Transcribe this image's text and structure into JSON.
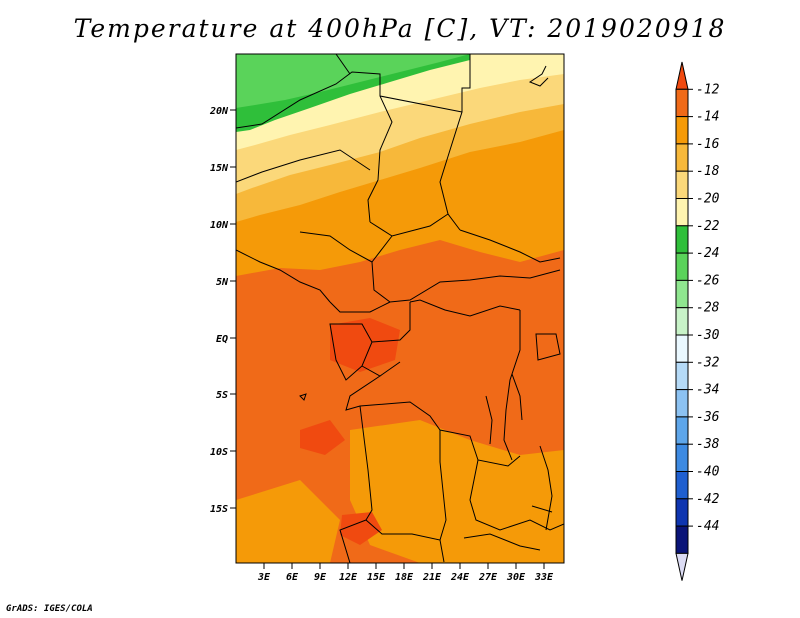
{
  "title": "Temperature at 400hPa [C], VT: 2019020918",
  "credit": "GrADS: IGES/COLA",
  "lat_labels": [
    "20N",
    "15N",
    "10N",
    "5N",
    "EQ",
    "5S",
    "10S",
    "15S"
  ],
  "lon_labels": [
    "3E",
    "6E",
    "9E",
    "12E",
    "15E",
    "18E",
    "21E",
    "24E",
    "27E",
    "30E",
    "33E"
  ],
  "colorbar": {
    "labels": [
      "-12",
      "-14",
      "-16",
      "-18",
      "-20",
      "-22",
      "-24",
      "-26",
      "-28",
      "-30",
      "-32",
      "-34",
      "-36",
      "-38",
      "-40",
      "-42",
      "-44"
    ],
    "colors": [
      "#f04a10",
      "#f06a18",
      "#f59a08",
      "#f7b83a",
      "#fbd87a",
      "#fff4b0",
      "#2fbf3a",
      "#5ad35a",
      "#8fe68f",
      "#c8f3c8",
      "#eaf8ff",
      "#b5daf7",
      "#8cc2f2",
      "#5ea6ea",
      "#3d8ae2",
      "#1f5fd0",
      "#0e35b0",
      "#0a1478",
      "#dcdcf4"
    ]
  },
  "colors": {
    "frame": "#000000",
    "boundary": "#000000"
  }
}
